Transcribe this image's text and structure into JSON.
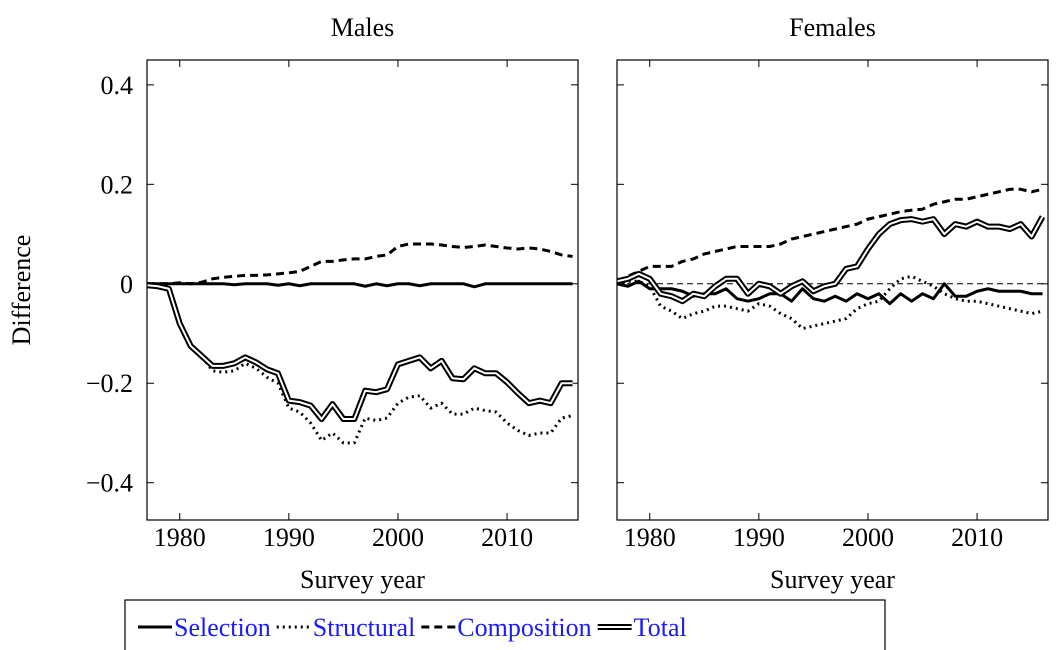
{
  "chart_data": [
    {
      "type": "line",
      "title": "Males",
      "x_label": "Survey year",
      "y_label": "Difference",
      "x": [
        1977,
        1978,
        1979,
        1980,
        1981,
        1982,
        1983,
        1984,
        1985,
        1986,
        1987,
        1988,
        1989,
        1990,
        1991,
        1992,
        1993,
        1994,
        1995,
        1996,
        1997,
        1998,
        1999,
        2000,
        2001,
        2002,
        2003,
        2004,
        2005,
        2006,
        2007,
        2008,
        2009,
        2010,
        2011,
        2012,
        2013,
        2014,
        2015,
        2016
      ],
      "xlim": [
        1977,
        2016.5
      ],
      "xticks": [
        1980,
        1990,
        2000,
        2010
      ],
      "ylim": [
        -0.475,
        0.45
      ],
      "yticks": [
        -0.4,
        -0.2,
        0,
        0.2,
        0.4
      ],
      "series": [
        {
          "name": "Selection",
          "color": "#000000",
          "style": "solid",
          "values": [
            0,
            0,
            0,
            0,
            0,
            0,
            0,
            0,
            -0.002,
            0,
            0,
            0,
            -0.003,
            0,
            -0.004,
            0,
            0,
            0,
            0,
            0,
            -0.005,
            0,
            -0.004,
            0,
            0,
            -0.004,
            0,
            0,
            0,
            0,
            -0.006,
            0,
            0,
            0,
            0,
            0,
            0,
            0,
            0,
            0
          ]
        },
        {
          "name": "Structural",
          "color": "#000000",
          "style": "dotted",
          "values": [
            0,
            0,
            -0.005,
            -0.08,
            -0.125,
            -0.145,
            -0.175,
            -0.178,
            -0.175,
            -0.16,
            -0.17,
            -0.188,
            -0.2,
            -0.25,
            -0.258,
            -0.28,
            -0.315,
            -0.3,
            -0.32,
            -0.32,
            -0.27,
            -0.275,
            -0.27,
            -0.24,
            -0.228,
            -0.225,
            -0.25,
            -0.24,
            -0.262,
            -0.262,
            -0.25,
            -0.255,
            -0.258,
            -0.28,
            -0.295,
            -0.305,
            -0.3,
            -0.3,
            -0.27,
            -0.265
          ]
        },
        {
          "name": "Composition",
          "color": "#000000",
          "style": "dashed",
          "values": [
            0,
            0,
            0,
            0.002,
            0,
            0.003,
            0.01,
            0.013,
            0.015,
            0.017,
            0.017,
            0.018,
            0.02,
            0.022,
            0.025,
            0.035,
            0.045,
            0.045,
            0.048,
            0.05,
            0.05,
            0.055,
            0.058,
            0.075,
            0.08,
            0.08,
            0.08,
            0.078,
            0.075,
            0.073,
            0.075,
            0.078,
            0.075,
            0.072,
            0.07,
            0.072,
            0.07,
            0.065,
            0.058,
            0.055
          ]
        },
        {
          "name": "Total",
          "color": "#000000",
          "style": "double",
          "values": [
            -0.003,
            -0.005,
            -0.01,
            -0.08,
            -0.125,
            -0.145,
            -0.165,
            -0.165,
            -0.16,
            -0.148,
            -0.158,
            -0.172,
            -0.18,
            -0.235,
            -0.238,
            -0.245,
            -0.272,
            -0.242,
            -0.272,
            -0.272,
            -0.215,
            -0.218,
            -0.212,
            -0.162,
            -0.155,
            -0.148,
            -0.17,
            -0.155,
            -0.19,
            -0.192,
            -0.17,
            -0.18,
            -0.18,
            -0.198,
            -0.22,
            -0.24,
            -0.235,
            -0.24,
            -0.2,
            -0.2
          ]
        }
      ]
    },
    {
      "type": "line",
      "title": "Females",
      "x_label": "Survey year",
      "y_tick_labels": false,
      "reference_line": 0,
      "x": [
        1977,
        1978,
        1979,
        1980,
        1981,
        1982,
        1983,
        1984,
        1985,
        1986,
        1987,
        1988,
        1989,
        1990,
        1991,
        1992,
        1993,
        1994,
        1995,
        1996,
        1997,
        1998,
        1999,
        2000,
        2001,
        2002,
        2003,
        2004,
        2005,
        2006,
        2007,
        2008,
        2009,
        2010,
        2011,
        2012,
        2013,
        2014,
        2015,
        2016
      ],
      "xlim": [
        1977,
        2016.5
      ],
      "xticks": [
        1980,
        1990,
        2000,
        2010
      ],
      "ylim": [
        -0.475,
        0.45
      ],
      "yticks": [
        -0.4,
        -0.2,
        0,
        0.2,
        0.4
      ],
      "series": [
        {
          "name": "Selection",
          "color": "#000000",
          "style": "solid",
          "values": [
            0,
            -0.005,
            0.005,
            -0.01,
            -0.01,
            -0.01,
            -0.015,
            -0.025,
            -0.02,
            -0.02,
            -0.01,
            -0.03,
            -0.035,
            -0.03,
            -0.02,
            -0.02,
            -0.035,
            -0.01,
            -0.03,
            -0.035,
            -0.025,
            -0.035,
            -0.02,
            -0.03,
            -0.02,
            -0.04,
            -0.02,
            -0.035,
            -0.02,
            -0.03,
            0,
            -0.025,
            -0.025,
            -0.015,
            -0.01,
            -0.015,
            -0.015,
            -0.015,
            -0.02,
            -0.02
          ]
        },
        {
          "name": "Structural",
          "color": "#000000",
          "style": "dotted",
          "values": [
            0,
            0.005,
            0.005,
            -0.005,
            -0.045,
            -0.055,
            -0.07,
            -0.06,
            -0.055,
            -0.045,
            -0.045,
            -0.05,
            -0.055,
            -0.04,
            -0.045,
            -0.06,
            -0.07,
            -0.09,
            -0.085,
            -0.08,
            -0.075,
            -0.07,
            -0.05,
            -0.04,
            -0.035,
            -0.01,
            0.01,
            0.015,
            0.005,
            -0.005,
            -0.02,
            -0.03,
            -0.035,
            -0.035,
            -0.04,
            -0.045,
            -0.05,
            -0.055,
            -0.06,
            -0.055
          ]
        },
        {
          "name": "Composition",
          "color": "#000000",
          "style": "dashed",
          "values": [
            0.005,
            0.015,
            0.025,
            0.035,
            0.035,
            0.035,
            0.045,
            0.05,
            0.06,
            0.065,
            0.07,
            0.075,
            0.075,
            0.075,
            0.075,
            0.08,
            0.09,
            0.095,
            0.1,
            0.105,
            0.11,
            0.115,
            0.12,
            0.13,
            0.135,
            0.14,
            0.145,
            0.148,
            0.15,
            0.16,
            0.165,
            0.17,
            0.17,
            0.175,
            0.18,
            0.185,
            0.19,
            0.19,
            0.185,
            0.19
          ]
        },
        {
          "name": "Total",
          "color": "#000000",
          "style": "double",
          "values": [
            0.005,
            0.01,
            0.02,
            0.01,
            -0.02,
            -0.025,
            -0.035,
            -0.02,
            -0.025,
            -0.005,
            0.01,
            0.01,
            -0.02,
            0,
            -0.005,
            -0.02,
            -0.005,
            0.005,
            -0.015,
            -0.005,
            0,
            0.03,
            0.035,
            0.07,
            0.1,
            0.12,
            0.128,
            0.13,
            0.125,
            0.13,
            0.1,
            0.12,
            0.115,
            0.125,
            0.115,
            0.115,
            0.11,
            0.12,
            0.095,
            0.135
          ]
        }
      ]
    }
  ]
}
